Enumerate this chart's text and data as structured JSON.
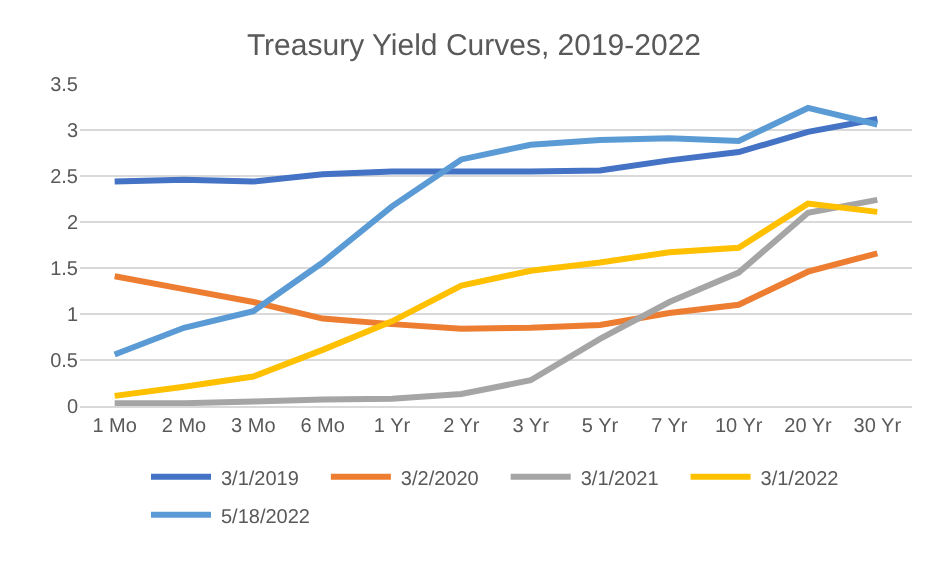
{
  "chart_data": {
    "type": "line",
    "title": "Treasury Yield Curves, 2019-2022",
    "categories": [
      "1 Mo",
      "2 Mo",
      "3 Mo",
      "6 Mo",
      "1 Yr",
      "2 Yr",
      "3 Yr",
      "5 Yr",
      "7 Yr",
      "10 Yr",
      "20 Yr",
      "30 Yr"
    ],
    "series": [
      {
        "name": "3/1/2019",
        "color": "#4472c4",
        "values": [
          2.44,
          2.46,
          2.44,
          2.52,
          2.55,
          2.55,
          2.55,
          2.56,
          2.67,
          2.76,
          2.98,
          3.12
        ]
      },
      {
        "name": "3/2/2020",
        "color": "#ed7d31",
        "values": [
          1.41,
          1.27,
          1.13,
          0.95,
          0.89,
          0.84,
          0.85,
          0.88,
          1.01,
          1.1,
          1.46,
          1.66
        ]
      },
      {
        "name": "3/1/2021",
        "color": "#a5a5a5",
        "values": [
          0.03,
          0.03,
          0.05,
          0.07,
          0.08,
          0.13,
          0.28,
          0.73,
          1.13,
          1.45,
          2.1,
          2.24
        ]
      },
      {
        "name": "3/1/2022",
        "color": "#ffc000",
        "values": [
          0.11,
          0.21,
          0.32,
          0.61,
          0.92,
          1.31,
          1.47,
          1.56,
          1.67,
          1.72,
          2.2,
          2.11
        ]
      },
      {
        "name": "5/18/2022",
        "color": "#5b9bd5",
        "values": [
          0.56,
          0.85,
          1.03,
          1.56,
          2.17,
          2.68,
          2.84,
          2.89,
          2.91,
          2.88,
          3.24,
          3.06
        ]
      }
    ],
    "ylim": [
      0,
      3.5
    ],
    "yticks": [
      0,
      0.5,
      1,
      1.5,
      2,
      2.5,
      3,
      3.5
    ],
    "grid": "y",
    "legend": "bottom",
    "marker": "none",
    "line_style": "solid"
  }
}
